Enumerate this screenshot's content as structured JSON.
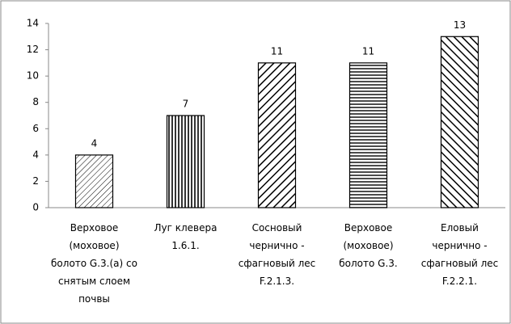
{
  "chart_data": {
    "type": "bar",
    "categories": [
      "Верховое (моховое) болото G.3.(а) со снятым слоем почвы",
      "Луг клевера 1.6.1.",
      "Сосновый чернично - сфагновый лес F.2.1.3.",
      "Верховое (моховое) болото G.3.",
      "Еловый чернично - сфагновый лес F.2.2.1."
    ],
    "values": [
      4,
      7,
      11,
      11,
      13
    ],
    "color": "#000000",
    "ylim": [
      0,
      14
    ],
    "yticks": [
      0,
      2,
      4,
      6,
      8,
      10,
      12,
      14
    ],
    "grid": false
  }
}
